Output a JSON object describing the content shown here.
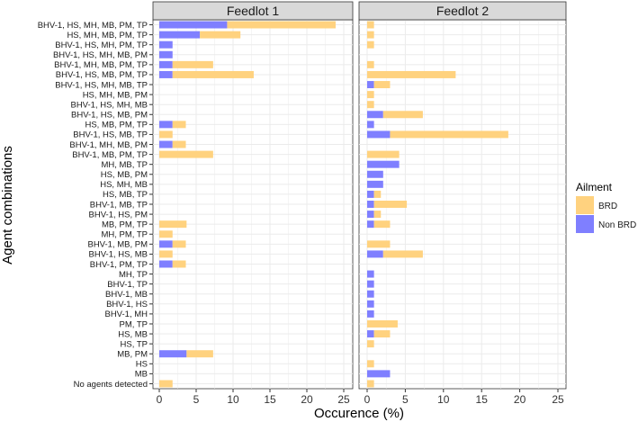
{
  "chart_data": {
    "type": "bar",
    "orientation": "horizontal",
    "stacked": true,
    "xlabel": "Occurence (%)",
    "ylabel": "Agent combinations",
    "xlim": [
      0,
      25
    ],
    "xticks": [
      0,
      5,
      10,
      15,
      20,
      25
    ],
    "legend_title": "Ailment",
    "legend_position": "right",
    "grid": true,
    "colors": {
      "BRD": "#ffd27f",
      "Non BRD": "#7f7fff",
      "strip": "#d9d9d9",
      "grid": "#ebebeb"
    },
    "categories": [
      "BHV-1, HS, MH, MB, PM, TP",
      "HS, MH, MB, PM, TP",
      "BHV-1, HS, MH, PM, TP",
      "BHV-1, HS, MH, MB, PM",
      "BHV-1, MH, MB, PM, TP",
      "BHV-1, HS, MB, PM, TP",
      "BHV-1, HS, MH, MB, TP",
      "HS, MH, MB, PM",
      "BHV-1, HS, MH, MB",
      "BHV-1, HS, MB, PM",
      "HS, MB, PM, TP",
      "BHV-1, HS, MB, TP",
      "BHV-1, MH, MB, PM",
      "BHV-1, MB, PM, TP",
      "MH, MB, TP",
      "HS, MB, PM",
      "HS, MH, MB",
      "HS, MB, TP",
      "BHV-1, MB, TP",
      "BHV-1, HS, PM",
      "MB, PM, TP",
      "MH, PM, TP",
      "BHV-1, MB, PM",
      "BHV-1, HS, MB",
      "BHV-1, PM, TP",
      "MH, TP",
      "BHV-1, TP",
      "BHV-1, MB",
      "BHV-1, HS",
      "BHV-1, MH",
      "PM, TP",
      "HS, MB",
      "HS, TP",
      "MB, PM",
      "HS",
      "MB",
      "No agents detected"
    ],
    "panels": [
      {
        "title": "Feedlot 1",
        "series": [
          {
            "name": "Non BRD",
            "values": [
              9.2,
              5.5,
              1.8,
              1.8,
              1.8,
              1.8,
              0,
              0,
              0,
              0,
              1.8,
              0,
              1.8,
              0,
              0,
              0,
              0,
              0,
              0,
              0,
              0,
              0,
              1.8,
              0,
              1.8,
              0,
              0,
              0,
              0,
              0,
              0,
              0,
              0,
              3.7,
              0,
              0,
              0
            ]
          },
          {
            "name": "BRD",
            "values": [
              14.7,
              5.5,
              0,
              0,
              5.5,
              11.0,
              0,
              0,
              0,
              0,
              1.8,
              1.8,
              1.8,
              7.3,
              0,
              0,
              0,
              0,
              0,
              0,
              3.7,
              1.8,
              1.8,
              1.8,
              1.8,
              0,
              0,
              0,
              0,
              0,
              0,
              0,
              0,
              3.6,
              0,
              0,
              1.8
            ]
          }
        ]
      },
      {
        "title": "Feedlot 2",
        "series": [
          {
            "name": "Non BRD",
            "values": [
              0,
              0,
              0,
              0,
              0,
              0,
              0.9,
              0,
              0,
              2.1,
              0.9,
              3.0,
              0,
              0,
              4.2,
              2.1,
              2.1,
              0.9,
              0.9,
              0.9,
              0.9,
              0,
              0,
              2.1,
              0,
              0.9,
              0.9,
              0.9,
              0.9,
              0.9,
              0,
              0.9,
              0,
              0,
              0,
              3.0,
              0
            ]
          },
          {
            "name": "BRD",
            "values": [
              0.9,
              0.9,
              0.9,
              0,
              0.9,
              11.6,
              2.1,
              0.9,
              0.9,
              5.2,
              0,
              15.5,
              0,
              4.2,
              0,
              0,
              0,
              0.9,
              4.3,
              0.9,
              2.1,
              0,
              3.0,
              5.2,
              0,
              0,
              0,
              0,
              0,
              0,
              4.0,
              2.1,
              0.9,
              0,
              0.9,
              0,
              0.9
            ]
          }
        ]
      }
    ]
  }
}
